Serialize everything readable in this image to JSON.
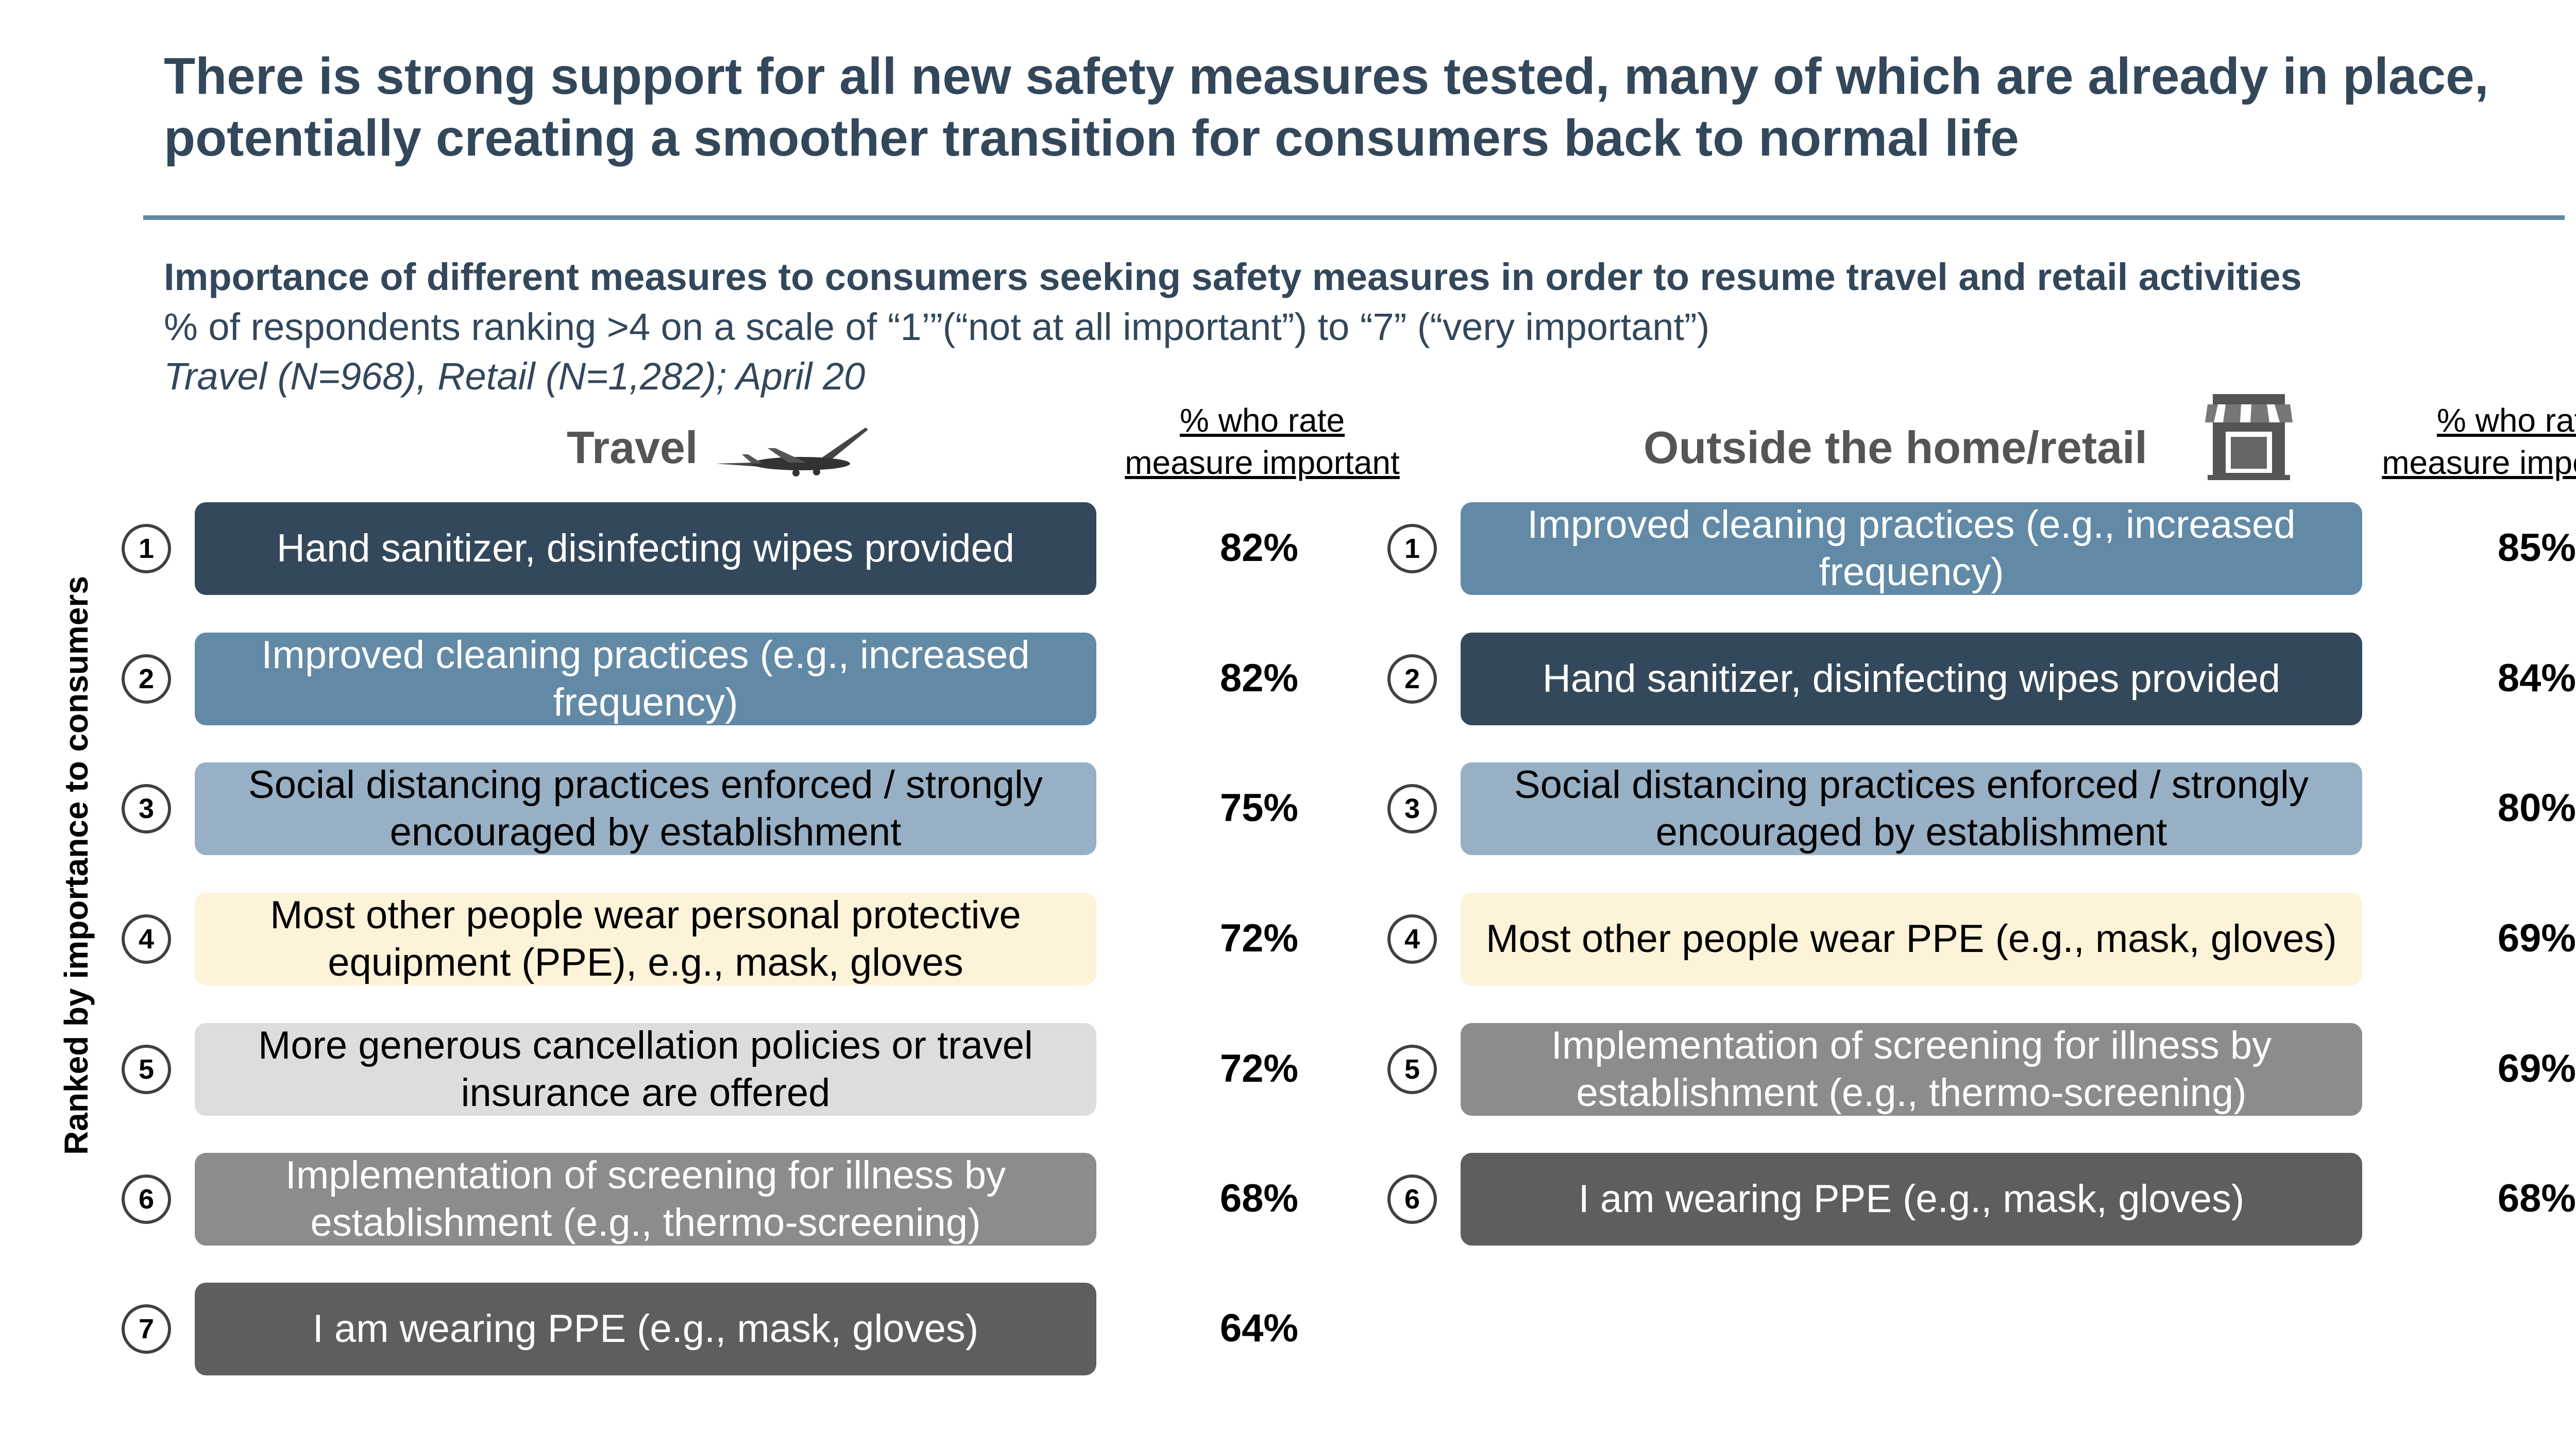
{
  "title": "There is strong support for all new safety measures tested, many of which are already in place, potentially creating a smoother transition for consumers back to normal life",
  "subtitle": "Importance of different measures to consumers seeking safety measures in order to resume travel and retail activities",
  "description": "% of respondents ranking >4 on a scale of “1’”(“not at all important”) to “7” (“very important”)",
  "sample_note": "Travel (N=968), Retail (N=1,282); April 20",
  "axis_label": "Ranked by importance to consumers",
  "colors": {
    "title": "#33475b",
    "rule": "#6189a5",
    "dark_slate": "#33495b",
    "steel_blue": "#628aa6",
    "light_blue": "#97b0c5",
    "cream": "#fdf3d9",
    "light_grey": "#dddddd",
    "mid_grey": "#8c8c8c",
    "dark_grey": "#5e5e5e"
  },
  "travel": {
    "heading": "Travel",
    "icon": "airplane-icon",
    "column_header": [
      "% who rate",
      "measure important"
    ],
    "items": [
      {
        "rank": "1",
        "label": "Hand sanitizer, disinfecting wipes provided",
        "value": "82%",
        "bg": "#33495b",
        "fg": "#ffffff"
      },
      {
        "rank": "2",
        "label": "Improved cleaning practices (e.g., increased frequency)",
        "value": "82%",
        "bg": "#628aa6",
        "fg": "#ffffff"
      },
      {
        "rank": "3",
        "label": "Social distancing practices enforced / strongly encouraged by establishment",
        "value": "75%",
        "bg": "#97b0c5",
        "fg": "#000000"
      },
      {
        "rank": "4",
        "label": "Most other people wear personal protective equipment (PPE), e.g., mask, gloves",
        "value": "72%",
        "bg": "#fdf3d9",
        "fg": "#000000"
      },
      {
        "rank": "5",
        "label": "More generous cancellation policies or travel insurance are offered",
        "value": "72%",
        "bg": "#dddddd",
        "fg": "#000000"
      },
      {
        "rank": "6",
        "label": "Implementation of screening for illness by establishment (e.g., thermo-screening)",
        "value": "68%",
        "bg": "#8c8c8c",
        "fg": "#ffffff"
      },
      {
        "rank": "7",
        "label": "I am wearing PPE (e.g., mask, gloves)",
        "value": "64%",
        "bg": "#5e5e5e",
        "fg": "#ffffff"
      }
    ]
  },
  "retail": {
    "heading": "Outside the home/retail",
    "icon": "storefront-icon",
    "column_header": [
      "% who rate",
      "measure important"
    ],
    "items": [
      {
        "rank": "1",
        "label": "Improved cleaning practices (e.g., increased frequency)",
        "value": "85%",
        "bg": "#628aa6",
        "fg": "#ffffff"
      },
      {
        "rank": "2",
        "label": "Hand sanitizer, disinfecting wipes provided",
        "value": "84%",
        "bg": "#33495b",
        "fg": "#ffffff"
      },
      {
        "rank": "3",
        "label": "Social distancing practices enforced / strongly encouraged by establishment",
        "value": "80%",
        "bg": "#97b0c5",
        "fg": "#000000"
      },
      {
        "rank": "4",
        "label": "Most other people wear PPE (e.g., mask, gloves)",
        "value": "69%",
        "bg": "#fdf3d9",
        "fg": "#000000"
      },
      {
        "rank": "5",
        "label": "Implementation of screening for illness by establishment (e.g., thermo-screening)",
        "value": "69%",
        "bg": "#8c8c8c",
        "fg": "#ffffff"
      },
      {
        "rank": "6",
        "label": "I am wearing PPE (e.g., mask, gloves)",
        "value": "68%",
        "bg": "#5e5e5e",
        "fg": "#ffffff"
      }
    ]
  }
}
